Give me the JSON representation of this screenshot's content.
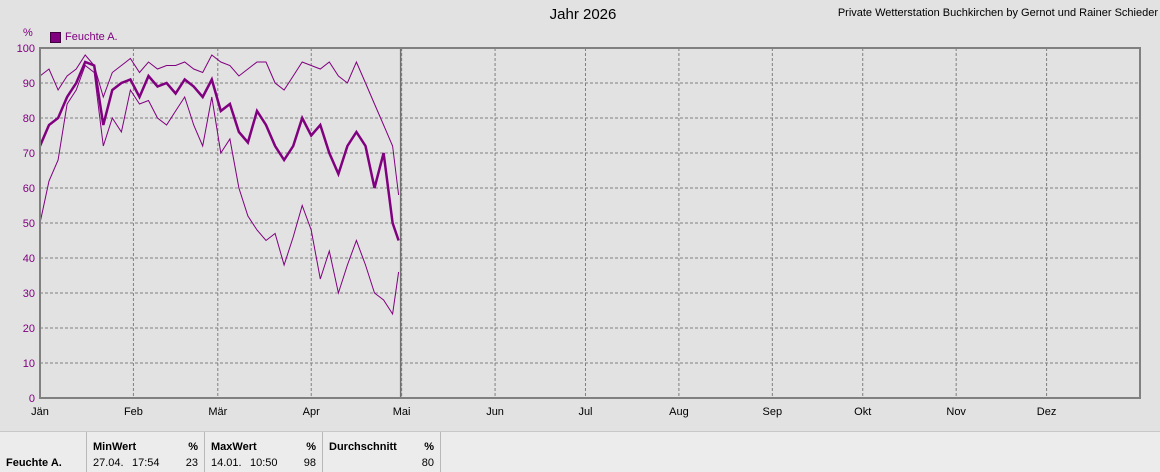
{
  "header": {
    "title": "Jahr 2026",
    "credit": "Private Wetterstation Buchkirchen by Gernot und Rainer Schieder"
  },
  "legend": {
    "label": "Feuchte A.",
    "color": "#800080"
  },
  "chart_data": {
    "type": "line",
    "title": "Jahr 2026",
    "ylabel": "%",
    "ylim": [
      0,
      100
    ],
    "yticks": [
      0,
      10,
      20,
      30,
      40,
      50,
      60,
      70,
      80,
      90,
      100
    ],
    "xlim": [
      "2026-01-01",
      "2026-12-31"
    ],
    "month_labels": [
      "Jän",
      "Feb",
      "Mär",
      "Apr",
      "Mai",
      "Jun",
      "Jul",
      "Aug",
      "Sep",
      "Okt",
      "Nov",
      "Dez"
    ],
    "marker_date": "2026-05-01",
    "grid": true,
    "legend_position": "top-left",
    "series": [
      {
        "name": "Feuchte A.",
        "color": "#800080",
        "days": [
          1,
          4,
          7,
          10,
          13,
          16,
          19,
          22,
          25,
          28,
          31,
          34,
          37,
          40,
          43,
          46,
          49,
          52,
          55,
          58,
          61,
          64,
          67,
          70,
          73,
          76,
          79,
          82,
          85,
          88,
          91,
          94,
          97,
          100,
          103,
          106,
          109,
          112,
          115,
          118,
          120
        ],
        "avg": [
          72,
          78,
          80,
          86,
          90,
          96,
          95,
          78,
          88,
          90,
          91,
          86,
          92,
          89,
          90,
          87,
          91,
          89,
          86,
          91,
          82,
          84,
          76,
          73,
          82,
          78,
          72,
          68,
          72,
          80,
          75,
          78,
          70,
          64,
          72,
          76,
          72,
          60,
          70,
          50,
          45
        ],
        "max": [
          92,
          94,
          88,
          92,
          94,
          98,
          95,
          86,
          93,
          95,
          97,
          93,
          96,
          94,
          95,
          95,
          96,
          94,
          93,
          98,
          96,
          95,
          92,
          94,
          96,
          96,
          90,
          88,
          92,
          96,
          95,
          94,
          96,
          92,
          90,
          96,
          90,
          84,
          78,
          72,
          58
        ],
        "min": [
          50,
          62,
          68,
          84,
          88,
          95,
          93,
          72,
          80,
          76,
          88,
          84,
          85,
          80,
          78,
          82,
          86,
          78,
          72,
          86,
          70,
          74,
          60,
          52,
          48,
          45,
          47,
          38,
          46,
          55,
          48,
          34,
          42,
          30,
          38,
          45,
          38,
          30,
          28,
          24,
          36
        ]
      }
    ]
  },
  "stats": {
    "row_label": "Feuchte A.",
    "min": {
      "header": "MinWert",
      "unit": "%",
      "date": "27.04.",
      "time": "17:54",
      "value": "23"
    },
    "max": {
      "header": "MaxWert",
      "unit": "%",
      "date": "14.01.",
      "time": "10:50",
      "value": "98"
    },
    "avg": {
      "header": "Durchschnitt",
      "unit": "%",
      "value": "80"
    }
  }
}
